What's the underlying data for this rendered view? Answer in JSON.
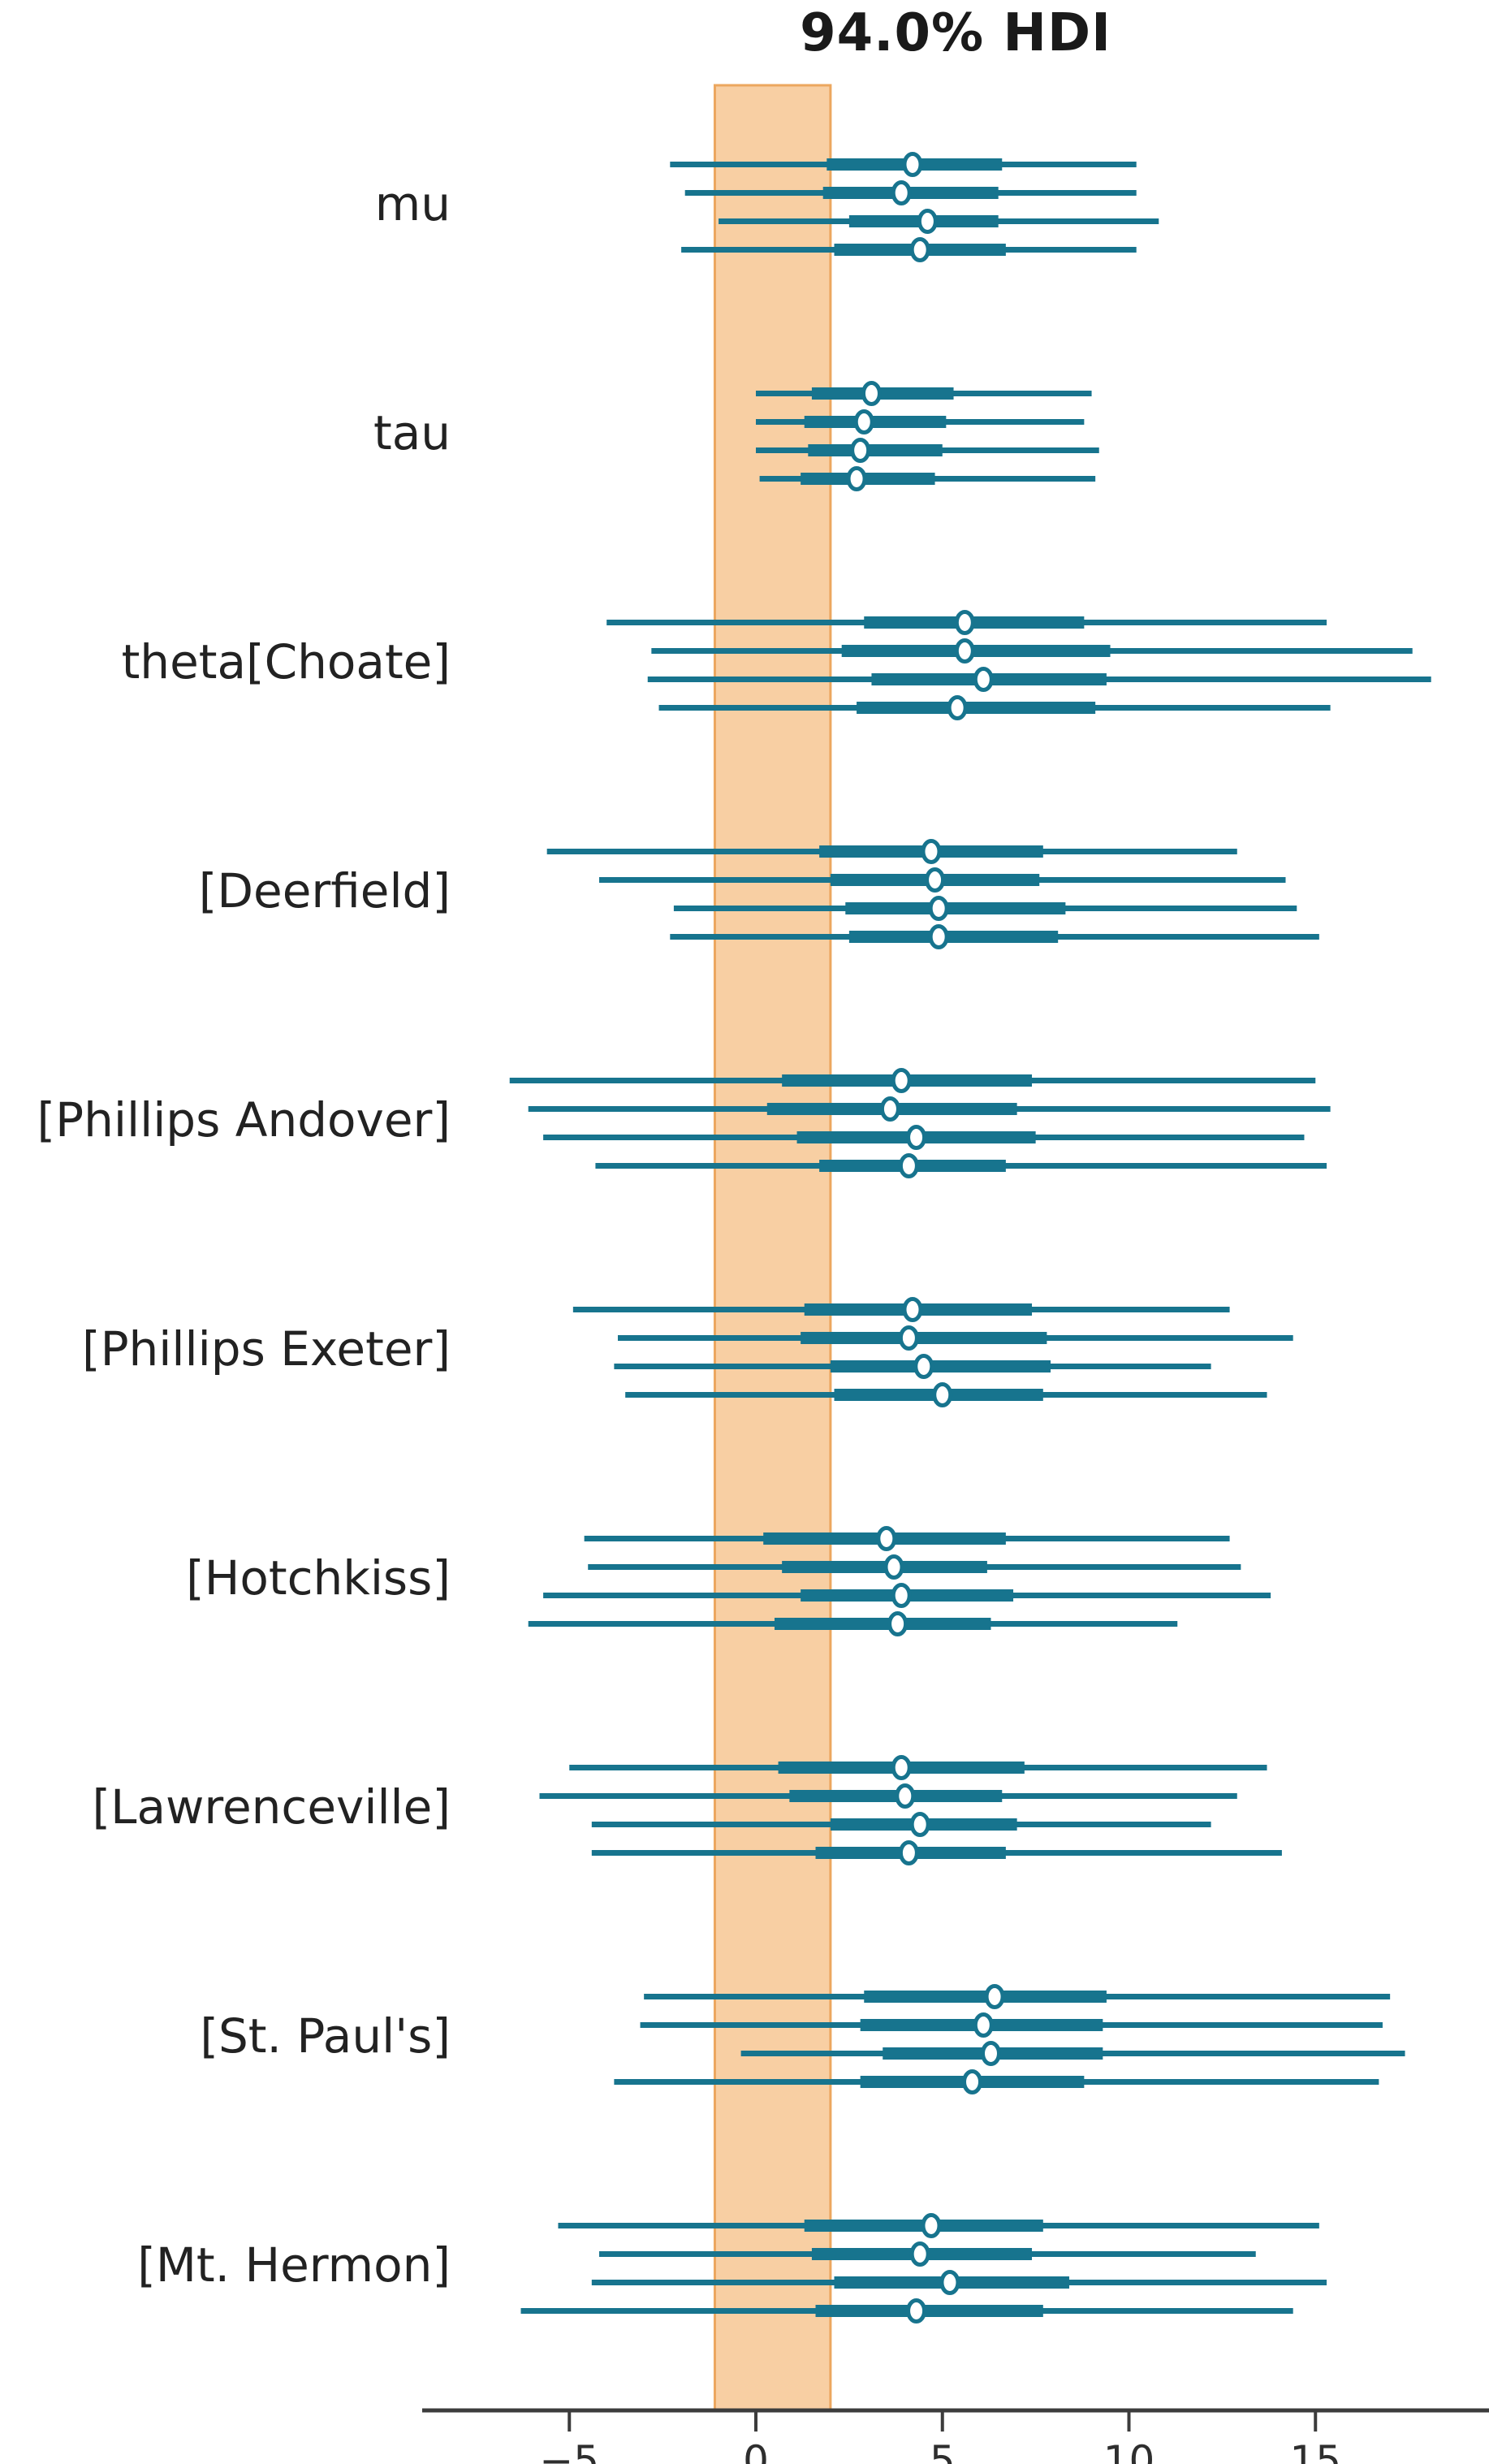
{
  "title": "94.0% HDI",
  "chart_data": {
    "type": "forest",
    "title": "94.0% HDI",
    "hdi_probability": 0.94,
    "legend_position": "none",
    "grid": false,
    "orientation": "horizontal",
    "chains_per_variable": 4,
    "value_format": "[hdi_low, quartile_low, median, quartile_high, hdi_high]",
    "x_axis": {
      "range": [
        -8.1,
        19.7
      ],
      "ticks": [
        {
          "value": -5,
          "label": "−5"
        },
        {
          "value": 0,
          "label": "0"
        },
        {
          "value": 5,
          "label": "5"
        },
        {
          "value": 10,
          "label": "10"
        },
        {
          "value": 15,
          "label": "15"
        }
      ]
    },
    "rope": {
      "from": -1.1,
      "to": 2.0
    },
    "colors": {
      "interval": "#17748e",
      "rope_fill": "#f8cfa3",
      "rope_border": "#eca75f",
      "axis": "#3c3c3c",
      "tick_label": "#2e2e2e",
      "variable_label": "#222222",
      "median_dot_fill": "#ffffff"
    },
    "variables": [
      {
        "label": "mu",
        "chains": [
          [
            -2.3,
            1.9,
            4.2,
            6.6,
            10.2
          ],
          [
            -1.9,
            1.8,
            3.9,
            6.5,
            10.2
          ],
          [
            -1.0,
            2.5,
            4.6,
            6.5,
            10.8
          ],
          [
            -2.0,
            2.1,
            4.4,
            6.7,
            10.2
          ]
        ]
      },
      {
        "label": "tau",
        "chains": [
          [
            0.0,
            1.5,
            3.1,
            5.3,
            9.0
          ],
          [
            0.0,
            1.3,
            2.9,
            5.1,
            8.8
          ],
          [
            0.0,
            1.4,
            2.8,
            5.0,
            9.2
          ],
          [
            0.1,
            1.2,
            2.7,
            4.8,
            9.1
          ]
        ]
      },
      {
        "label": "theta[Choate]",
        "chains": [
          [
            -4.0,
            2.9,
            5.6,
            8.8,
            15.3
          ],
          [
            -2.8,
            2.3,
            5.6,
            9.5,
            17.6
          ],
          [
            -2.9,
            3.1,
            6.1,
            9.4,
            18.1
          ],
          [
            -2.6,
            2.7,
            5.4,
            9.1,
            15.4
          ]
        ]
      },
      {
        "label": "[Deerfield]",
        "chains": [
          [
            -5.6,
            1.7,
            4.7,
            7.7,
            12.9
          ],
          [
            -4.2,
            2.0,
            4.8,
            7.6,
            14.2
          ],
          [
            -2.2,
            2.4,
            4.9,
            8.3,
            14.5
          ],
          [
            -2.3,
            2.5,
            4.9,
            8.1,
            15.1
          ]
        ]
      },
      {
        "label": "[Phillips Andover]",
        "chains": [
          [
            -6.6,
            0.7,
            3.9,
            7.4,
            15.0
          ],
          [
            -6.1,
            0.3,
            3.6,
            7.0,
            15.4
          ],
          [
            -5.7,
            1.1,
            4.3,
            7.5,
            14.7
          ],
          [
            -4.3,
            1.7,
            4.1,
            6.7,
            15.3
          ]
        ]
      },
      {
        "label": "[Phillips Exeter]",
        "chains": [
          [
            -4.9,
            1.3,
            4.2,
            7.4,
            12.7
          ],
          [
            -3.7,
            1.2,
            4.1,
            7.8,
            14.4
          ],
          [
            -3.8,
            2.0,
            4.5,
            7.9,
            12.2
          ],
          [
            -3.5,
            2.1,
            5.0,
            7.7,
            13.7
          ]
        ]
      },
      {
        "label": "[Hotchkiss]",
        "chains": [
          [
            -4.6,
            0.2,
            3.5,
            6.7,
            12.7
          ],
          [
            -4.5,
            0.7,
            3.7,
            6.2,
            13.0
          ],
          [
            -5.7,
            1.2,
            3.9,
            6.9,
            13.8
          ],
          [
            -6.1,
            0.5,
            3.8,
            6.3,
            11.3
          ]
        ]
      },
      {
        "label": "[Lawrenceville]",
        "chains": [
          [
            -5.0,
            0.6,
            3.9,
            7.2,
            13.7
          ],
          [
            -5.8,
            0.9,
            4.0,
            6.6,
            12.9
          ],
          [
            -4.4,
            2.0,
            4.4,
            7.0,
            12.2
          ],
          [
            -4.4,
            1.6,
            4.1,
            6.7,
            14.1
          ]
        ]
      },
      {
        "label": "[St. Paul's]",
        "chains": [
          [
            -3.0,
            2.9,
            6.4,
            9.4,
            17.0
          ],
          [
            -3.1,
            2.8,
            6.1,
            9.3,
            16.8
          ],
          [
            -0.4,
            3.4,
            6.3,
            9.3,
            17.4
          ],
          [
            -3.8,
            2.8,
            5.8,
            8.8,
            16.7
          ]
        ]
      },
      {
        "label": "[Mt. Hermon]",
        "chains": [
          [
            -5.3,
            1.3,
            4.7,
            7.7,
            15.1
          ],
          [
            -4.2,
            1.5,
            4.4,
            7.4,
            13.4
          ],
          [
            -4.4,
            2.1,
            5.2,
            8.4,
            15.3
          ],
          [
            -6.3,
            1.6,
            4.3,
            7.7,
            14.4
          ]
        ]
      }
    ]
  }
}
